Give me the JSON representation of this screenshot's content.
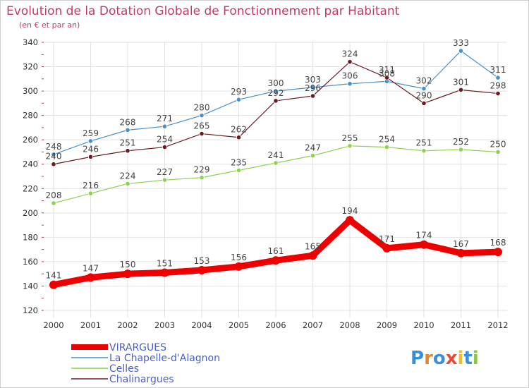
{
  "chart_data": {
    "type": "line",
    "title": "Evolution de la Dotation Globale de Fonctionnement par Habitant",
    "subtitle": "(en € et par an)",
    "x": [
      "2000",
      "2001",
      "2002",
      "2003",
      "2004",
      "2005",
      "2006",
      "2007",
      "2008",
      "2009",
      "2010",
      "2011",
      "2012"
    ],
    "ylim": [
      120,
      340
    ],
    "yticks": [
      120,
      140,
      160,
      180,
      200,
      220,
      240,
      260,
      280,
      300,
      320,
      340
    ],
    "grid": true,
    "legend_position": "bottom-left",
    "series": [
      {
        "name": "La Chapelle-d'Alagnon",
        "color": "#4a90c8",
        "values": [
          248,
          259,
          268,
          271,
          280,
          293,
          300,
          303,
          306,
          308,
          302,
          333,
          311
        ]
      },
      {
        "name": "Chalinargues",
        "color": "#6b1a24",
        "values": [
          240,
          246,
          251,
          254,
          265,
          262,
          292,
          296,
          324,
          311,
          290,
          301,
          298
        ]
      },
      {
        "name": "Celles",
        "color": "#8fd14f",
        "values": [
          208,
          216,
          224,
          227,
          229,
          235,
          241,
          247,
          255,
          254,
          251,
          252,
          250
        ]
      },
      {
        "name": "VIRARGUES",
        "color": "#ee0000",
        "values": [
          141,
          147,
          150,
          151,
          153,
          156,
          161,
          165,
          194,
          171,
          174,
          167,
          168
        ]
      }
    ],
    "legend": [
      "VIRARGUES",
      "La Chapelle-d'Alagnon",
      "Celles",
      "Chalinargues"
    ]
  },
  "colors": {
    "title": "#c03a6e",
    "grid": "#e2e2e2",
    "axis_text": "#333333",
    "label_text": "#444444",
    "legend_text": "#4a60c8"
  },
  "brand": {
    "text": "Proxiti"
  }
}
